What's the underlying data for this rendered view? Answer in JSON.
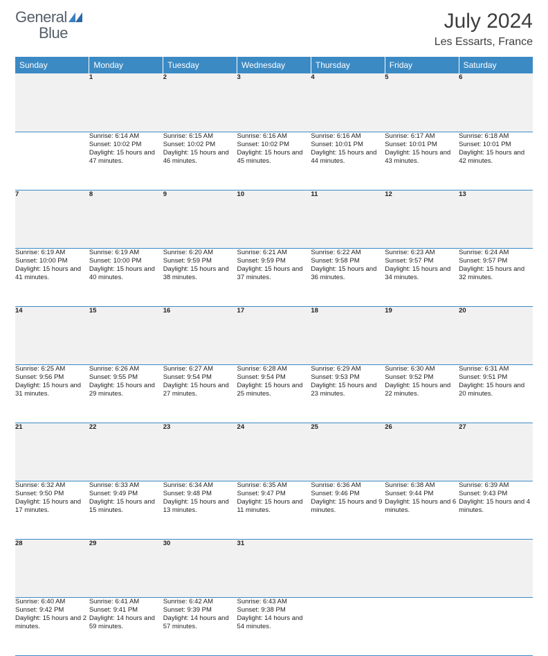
{
  "logo": {
    "first": "General",
    "second": "Blue"
  },
  "title": "July 2024",
  "location": "Les Essarts, France",
  "colors": {
    "header_band": "#3b8ac4",
    "daynum_bg": "#f1f1f1",
    "divider": "#3b8ac4",
    "text": "#222222",
    "title_text": "#3c3c3c",
    "logo_gray": "#555f6a",
    "logo_blue": "#3a7fc1"
  },
  "day_headers": [
    "Sunday",
    "Monday",
    "Tuesday",
    "Wednesday",
    "Thursday",
    "Friday",
    "Saturday"
  ],
  "grid": [
    [
      {
        "n": "",
        "sunrise": "",
        "sunset": "",
        "daylight": ""
      },
      {
        "n": "1",
        "sunrise": "Sunrise: 6:14 AM",
        "sunset": "Sunset: 10:02 PM",
        "daylight": "Daylight: 15 hours and 47 minutes."
      },
      {
        "n": "2",
        "sunrise": "Sunrise: 6:15 AM",
        "sunset": "Sunset: 10:02 PM",
        "daylight": "Daylight: 15 hours and 46 minutes."
      },
      {
        "n": "3",
        "sunrise": "Sunrise: 6:16 AM",
        "sunset": "Sunset: 10:02 PM",
        "daylight": "Daylight: 15 hours and 45 minutes."
      },
      {
        "n": "4",
        "sunrise": "Sunrise: 6:16 AM",
        "sunset": "Sunset: 10:01 PM",
        "daylight": "Daylight: 15 hours and 44 minutes."
      },
      {
        "n": "5",
        "sunrise": "Sunrise: 6:17 AM",
        "sunset": "Sunset: 10:01 PM",
        "daylight": "Daylight: 15 hours and 43 minutes."
      },
      {
        "n": "6",
        "sunrise": "Sunrise: 6:18 AM",
        "sunset": "Sunset: 10:01 PM",
        "daylight": "Daylight: 15 hours and 42 minutes."
      }
    ],
    [
      {
        "n": "7",
        "sunrise": "Sunrise: 6:19 AM",
        "sunset": "Sunset: 10:00 PM",
        "daylight": "Daylight: 15 hours and 41 minutes."
      },
      {
        "n": "8",
        "sunrise": "Sunrise: 6:19 AM",
        "sunset": "Sunset: 10:00 PM",
        "daylight": "Daylight: 15 hours and 40 minutes."
      },
      {
        "n": "9",
        "sunrise": "Sunrise: 6:20 AM",
        "sunset": "Sunset: 9:59 PM",
        "daylight": "Daylight: 15 hours and 38 minutes."
      },
      {
        "n": "10",
        "sunrise": "Sunrise: 6:21 AM",
        "sunset": "Sunset: 9:59 PM",
        "daylight": "Daylight: 15 hours and 37 minutes."
      },
      {
        "n": "11",
        "sunrise": "Sunrise: 6:22 AM",
        "sunset": "Sunset: 9:58 PM",
        "daylight": "Daylight: 15 hours and 36 minutes."
      },
      {
        "n": "12",
        "sunrise": "Sunrise: 6:23 AM",
        "sunset": "Sunset: 9:57 PM",
        "daylight": "Daylight: 15 hours and 34 minutes."
      },
      {
        "n": "13",
        "sunrise": "Sunrise: 6:24 AM",
        "sunset": "Sunset: 9:57 PM",
        "daylight": "Daylight: 15 hours and 32 minutes."
      }
    ],
    [
      {
        "n": "14",
        "sunrise": "Sunrise: 6:25 AM",
        "sunset": "Sunset: 9:56 PM",
        "daylight": "Daylight: 15 hours and 31 minutes."
      },
      {
        "n": "15",
        "sunrise": "Sunrise: 6:26 AM",
        "sunset": "Sunset: 9:55 PM",
        "daylight": "Daylight: 15 hours and 29 minutes."
      },
      {
        "n": "16",
        "sunrise": "Sunrise: 6:27 AM",
        "sunset": "Sunset: 9:54 PM",
        "daylight": "Daylight: 15 hours and 27 minutes."
      },
      {
        "n": "17",
        "sunrise": "Sunrise: 6:28 AM",
        "sunset": "Sunset: 9:54 PM",
        "daylight": "Daylight: 15 hours and 25 minutes."
      },
      {
        "n": "18",
        "sunrise": "Sunrise: 6:29 AM",
        "sunset": "Sunset: 9:53 PM",
        "daylight": "Daylight: 15 hours and 23 minutes."
      },
      {
        "n": "19",
        "sunrise": "Sunrise: 6:30 AM",
        "sunset": "Sunset: 9:52 PM",
        "daylight": "Daylight: 15 hours and 22 minutes."
      },
      {
        "n": "20",
        "sunrise": "Sunrise: 6:31 AM",
        "sunset": "Sunset: 9:51 PM",
        "daylight": "Daylight: 15 hours and 20 minutes."
      }
    ],
    [
      {
        "n": "21",
        "sunrise": "Sunrise: 6:32 AM",
        "sunset": "Sunset: 9:50 PM",
        "daylight": "Daylight: 15 hours and 17 minutes."
      },
      {
        "n": "22",
        "sunrise": "Sunrise: 6:33 AM",
        "sunset": "Sunset: 9:49 PM",
        "daylight": "Daylight: 15 hours and 15 minutes."
      },
      {
        "n": "23",
        "sunrise": "Sunrise: 6:34 AM",
        "sunset": "Sunset: 9:48 PM",
        "daylight": "Daylight: 15 hours and 13 minutes."
      },
      {
        "n": "24",
        "sunrise": "Sunrise: 6:35 AM",
        "sunset": "Sunset: 9:47 PM",
        "daylight": "Daylight: 15 hours and 11 minutes."
      },
      {
        "n": "25",
        "sunrise": "Sunrise: 6:36 AM",
        "sunset": "Sunset: 9:46 PM",
        "daylight": "Daylight: 15 hours and 9 minutes."
      },
      {
        "n": "26",
        "sunrise": "Sunrise: 6:38 AM",
        "sunset": "Sunset: 9:44 PM",
        "daylight": "Daylight: 15 hours and 6 minutes."
      },
      {
        "n": "27",
        "sunrise": "Sunrise: 6:39 AM",
        "sunset": "Sunset: 9:43 PM",
        "daylight": "Daylight: 15 hours and 4 minutes."
      }
    ],
    [
      {
        "n": "28",
        "sunrise": "Sunrise: 6:40 AM",
        "sunset": "Sunset: 9:42 PM",
        "daylight": "Daylight: 15 hours and 2 minutes."
      },
      {
        "n": "29",
        "sunrise": "Sunrise: 6:41 AM",
        "sunset": "Sunset: 9:41 PM",
        "daylight": "Daylight: 14 hours and 59 minutes."
      },
      {
        "n": "30",
        "sunrise": "Sunrise: 6:42 AM",
        "sunset": "Sunset: 9:39 PM",
        "daylight": "Daylight: 14 hours and 57 minutes."
      },
      {
        "n": "31",
        "sunrise": "Sunrise: 6:43 AM",
        "sunset": "Sunset: 9:38 PM",
        "daylight": "Daylight: 14 hours and 54 minutes."
      },
      {
        "n": "",
        "sunrise": "",
        "sunset": "",
        "daylight": ""
      },
      {
        "n": "",
        "sunrise": "",
        "sunset": "",
        "daylight": ""
      },
      {
        "n": "",
        "sunrise": "",
        "sunset": "",
        "daylight": ""
      }
    ]
  ]
}
